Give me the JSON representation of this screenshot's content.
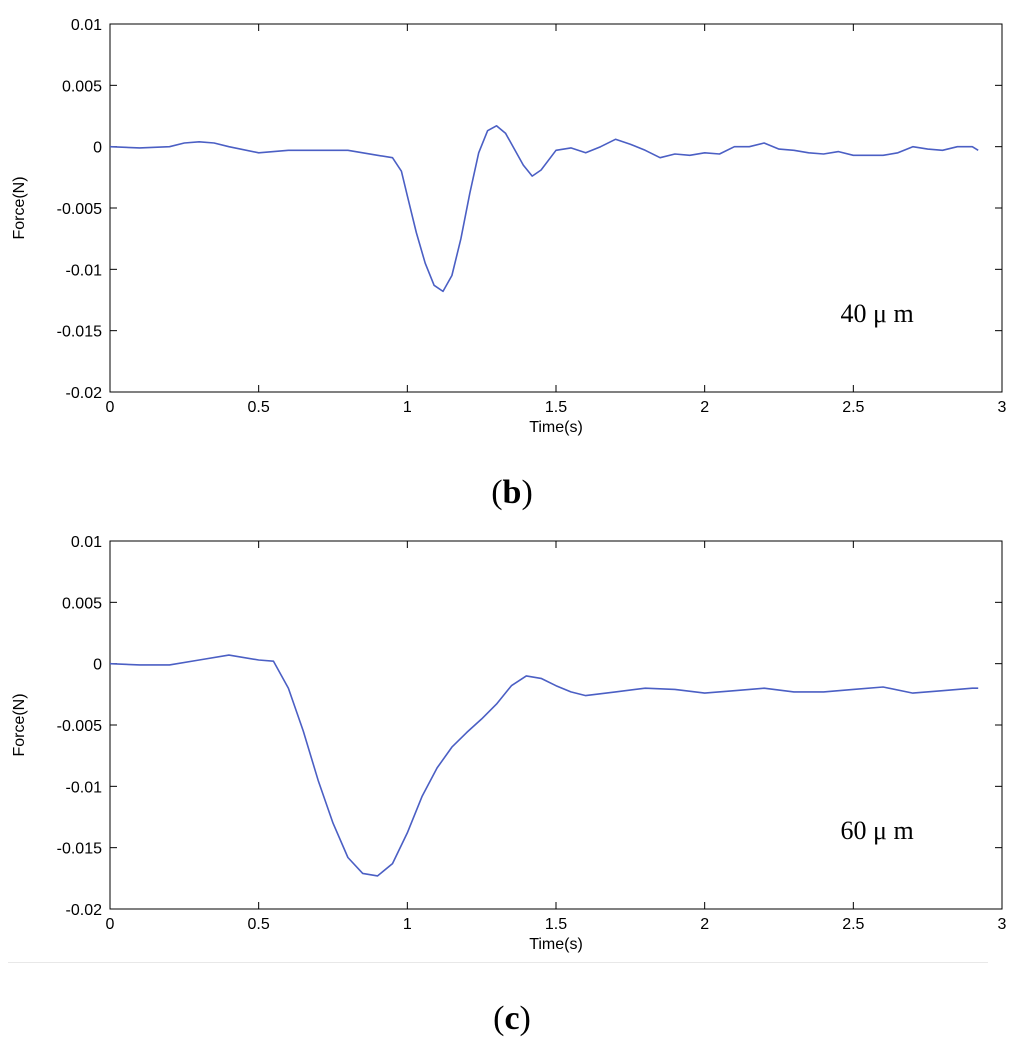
{
  "panels": [
    {
      "caption_open": "(",
      "caption_letter": "b",
      "caption_close": ")",
      "annotation": "40 μ m"
    },
    {
      "caption_open": "(",
      "caption_letter": "c",
      "caption_close": ")",
      "annotation": "60 μ m"
    }
  ],
  "chart_data": [
    {
      "type": "line",
      "title": "",
      "xlabel": "Time(s)",
      "ylabel": "Force(N)",
      "xlim": [
        0,
        3
      ],
      "ylim": [
        -0.02,
        0.01
      ],
      "xticks": [
        "0",
        "0.5",
        "1",
        "1.5",
        "2",
        "2.5",
        "3"
      ],
      "yticks": [
        "0.01",
        "0.005",
        "0",
        "-0.005",
        "-0.01",
        "-0.015",
        "-0.02"
      ],
      "grid": false,
      "line_color": "#4b5fc4",
      "annotation": "40 μ m",
      "series": [
        {
          "x": [
            0,
            0.1,
            0.2,
            0.25,
            0.3,
            0.35,
            0.4,
            0.5,
            0.6,
            0.7,
            0.8,
            0.9,
            0.95,
            0.98,
            1.0,
            1.03,
            1.06,
            1.09,
            1.12,
            1.15,
            1.18,
            1.21,
            1.24,
            1.27,
            1.3,
            1.33,
            1.36,
            1.39,
            1.42,
            1.45,
            1.5,
            1.55,
            1.6,
            1.65,
            1.7,
            1.75,
            1.8,
            1.85,
            1.9,
            1.95,
            2.0,
            2.05,
            2.1,
            2.15,
            2.2,
            2.25,
            2.3,
            2.35,
            2.4,
            2.45,
            2.5,
            2.55,
            2.6,
            2.65,
            2.7,
            2.75,
            2.8,
            2.85,
            2.9,
            2.92
          ],
          "y": [
            0.0,
            -0.0001,
            0.0,
            0.0003,
            0.0004,
            0.0003,
            0.0,
            -0.0005,
            -0.0003,
            -0.0003,
            -0.0003,
            -0.0007,
            -0.0009,
            -0.002,
            -0.004,
            -0.007,
            -0.0095,
            -0.0113,
            -0.0118,
            -0.0105,
            -0.0075,
            -0.0038,
            -0.0005,
            0.0013,
            0.0017,
            0.0011,
            -0.0002,
            -0.0015,
            -0.0024,
            -0.0019,
            -0.0003,
            -0.0001,
            -0.0005,
            0.0,
            0.0006,
            0.0002,
            -0.0003,
            -0.0009,
            -0.0006,
            -0.0007,
            -0.0005,
            -0.0006,
            0.0,
            0.0,
            0.0003,
            -0.0002,
            -0.0003,
            -0.0005,
            -0.0006,
            -0.0004,
            -0.0007,
            -0.0007,
            -0.0007,
            -0.0005,
            0.0,
            -0.0002,
            -0.0003,
            0.0,
            0.0,
            -0.0003
          ]
        }
      ]
    },
    {
      "type": "line",
      "title": "",
      "xlabel": "Time(s)",
      "ylabel": "Force(N)",
      "xlim": [
        0,
        3
      ],
      "ylim": [
        -0.02,
        0.01
      ],
      "xticks": [
        "0",
        "0.5",
        "1",
        "1.5",
        "2",
        "2.5",
        "3"
      ],
      "yticks": [
        "0.01",
        "0.005",
        "0",
        "-0.005",
        "-0.01",
        "-0.015",
        "-0.02"
      ],
      "grid": false,
      "line_color": "#4b5fc4",
      "annotation": "60 μ m",
      "series": [
        {
          "x": [
            0,
            0.1,
            0.2,
            0.3,
            0.4,
            0.5,
            0.55,
            0.6,
            0.65,
            0.7,
            0.75,
            0.8,
            0.85,
            0.9,
            0.95,
            1.0,
            1.05,
            1.1,
            1.15,
            1.2,
            1.25,
            1.3,
            1.35,
            1.4,
            1.45,
            1.5,
            1.55,
            1.6,
            1.7,
            1.8,
            1.9,
            2.0,
            2.1,
            2.2,
            2.3,
            2.4,
            2.5,
            2.6,
            2.7,
            2.8,
            2.9,
            2.92
          ],
          "y": [
            0.0,
            -0.0001,
            -0.0001,
            0.0003,
            0.0007,
            0.0003,
            0.0002,
            -0.002,
            -0.0055,
            -0.0095,
            -0.013,
            -0.0158,
            -0.0171,
            -0.0173,
            -0.0163,
            -0.0138,
            -0.0108,
            -0.0085,
            -0.0068,
            -0.0056,
            -0.0045,
            -0.0033,
            -0.0018,
            -0.001,
            -0.0012,
            -0.0018,
            -0.0023,
            -0.0026,
            -0.0023,
            -0.002,
            -0.0021,
            -0.0024,
            -0.0022,
            -0.002,
            -0.0023,
            -0.0023,
            -0.0021,
            -0.0019,
            -0.0024,
            -0.0022,
            -0.002,
            -0.002
          ]
        }
      ]
    }
  ]
}
